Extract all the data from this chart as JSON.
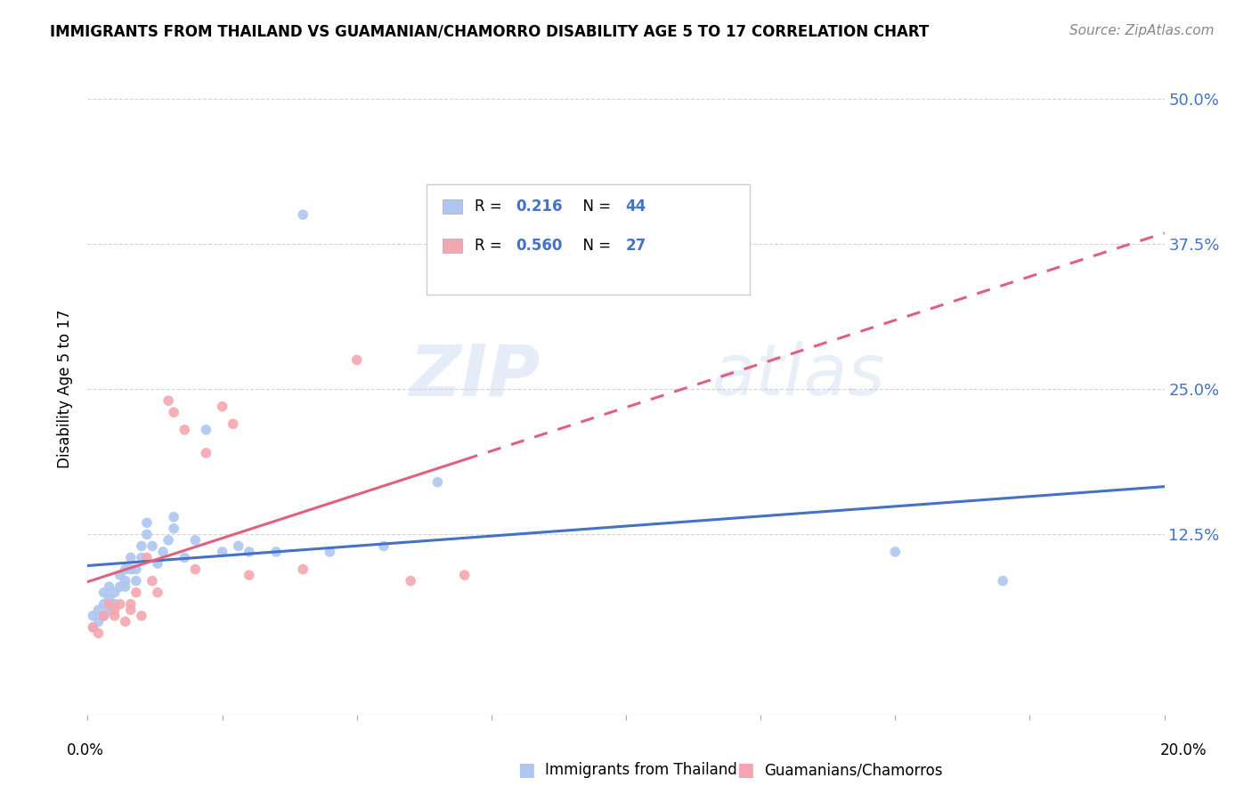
{
  "title": "IMMIGRANTS FROM THAILAND VS GUAMANIAN/CHAMORRO DISABILITY AGE 5 TO 17 CORRELATION CHART",
  "source": "Source: ZipAtlas.com",
  "ylabel": "Disability Age 5 to 17",
  "ytick_vals": [
    0.125,
    0.25,
    0.375,
    0.5
  ],
  "ytick_labels": [
    "12.5%",
    "25.0%",
    "37.5%",
    "50.0%"
  ],
  "xlim": [
    0.0,
    0.2
  ],
  "ylim": [
    -0.03,
    0.53
  ],
  "line1_color": "#4472C4",
  "line2_color": "#E06080",
  "scatter1_color": "#aec6f0",
  "scatter2_color": "#f4a7b0",
  "watermark_zip": "ZIP",
  "watermark_atlas": "atlas",
  "bottom_label1": "Immigrants from Thailand",
  "bottom_label2": "Guamanians/Chamorros",
  "background_color": "#ffffff",
  "grid_color": "#d0d0d0",
  "thailand_x": [
    0.001,
    0.001,
    0.002,
    0.002,
    0.003,
    0.003,
    0.003,
    0.004,
    0.004,
    0.004,
    0.005,
    0.005,
    0.006,
    0.006,
    0.007,
    0.007,
    0.007,
    0.008,
    0.008,
    0.009,
    0.009,
    0.01,
    0.01,
    0.011,
    0.011,
    0.012,
    0.013,
    0.014,
    0.015,
    0.016,
    0.016,
    0.018,
    0.02,
    0.022,
    0.025,
    0.028,
    0.03,
    0.035,
    0.04,
    0.045,
    0.055,
    0.065,
    0.15,
    0.17
  ],
  "thailand_y": [
    0.045,
    0.055,
    0.05,
    0.06,
    0.055,
    0.065,
    0.075,
    0.06,
    0.07,
    0.08,
    0.065,
    0.075,
    0.08,
    0.09,
    0.085,
    0.095,
    0.08,
    0.095,
    0.105,
    0.095,
    0.085,
    0.115,
    0.105,
    0.125,
    0.135,
    0.115,
    0.1,
    0.11,
    0.12,
    0.13,
    0.14,
    0.105,
    0.12,
    0.215,
    0.11,
    0.115,
    0.11,
    0.11,
    0.4,
    0.11,
    0.115,
    0.17,
    0.11,
    0.085
  ],
  "guam_x": [
    0.001,
    0.002,
    0.003,
    0.004,
    0.005,
    0.005,
    0.006,
    0.007,
    0.008,
    0.008,
    0.009,
    0.01,
    0.011,
    0.012,
    0.013,
    0.015,
    0.016,
    0.018,
    0.02,
    0.022,
    0.025,
    0.027,
    0.03,
    0.04,
    0.05,
    0.06,
    0.07
  ],
  "guam_y": [
    0.045,
    0.04,
    0.055,
    0.065,
    0.055,
    0.06,
    0.065,
    0.05,
    0.06,
    0.065,
    0.075,
    0.055,
    0.105,
    0.085,
    0.075,
    0.24,
    0.23,
    0.215,
    0.095,
    0.195,
    0.235,
    0.22,
    0.09,
    0.095,
    0.275,
    0.085,
    0.09
  ],
  "legend1_color": "#aec6f0",
  "legend2_color": "#f4a7b0",
  "legend1_r": "0.216",
  "legend1_n": "44",
  "legend2_r": "0.560",
  "legend2_n": "27"
}
